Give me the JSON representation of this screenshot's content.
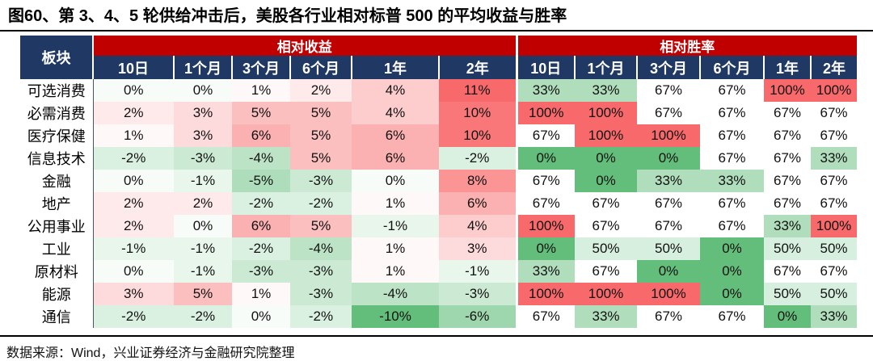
{
  "title": "图60、第 3、4、5 轮供给冲击后，美股各行业相对标普 500 的平均收益与胜率",
  "source": "数据来源：Wind，兴业证券经济与金融研究院整理",
  "colors": {
    "header_navy": "#1F3864",
    "header_red": "#C00000",
    "label_divider": "#44546A"
  },
  "table": {
    "sector_header": "板块",
    "groups": [
      {
        "label": "相对收益",
        "columns": [
          "10日",
          "1个月",
          "3个月",
          "6个月",
          "1年",
          "2年"
        ]
      },
      {
        "label": "相对胜率",
        "columns": [
          "10日",
          "1个月",
          "3个月",
          "6个月",
          "1年",
          "2年"
        ]
      }
    ]
  },
  "chart_data": {
    "type": "heatmap",
    "title": "图60、第 3、4、5 轮供给冲击后，美股各行业相对标普 500 的平均收益与胜率",
    "row_header": "板块",
    "column_groups": [
      "相对收益",
      "相对胜率"
    ],
    "columns": [
      "10日",
      "1个月",
      "3个月",
      "6个月",
      "1年",
      "2年"
    ],
    "unit": "%",
    "rows": [
      "可选消费",
      "必需消费",
      "医疗保健",
      "信息技术",
      "金融",
      "地产",
      "公用事业",
      "工业",
      "原材料",
      "能源",
      "通信"
    ],
    "returns": [
      [
        0,
        0,
        1,
        2,
        4,
        11
      ],
      [
        2,
        3,
        5,
        5,
        4,
        10
      ],
      [
        1,
        3,
        6,
        5,
        6,
        10
      ],
      [
        -2,
        -3,
        -4,
        5,
        6,
        -2
      ],
      [
        0,
        -1,
        -5,
        -3,
        0,
        8
      ],
      [
        2,
        2,
        -2,
        -2,
        1,
        6
      ],
      [
        2,
        0,
        6,
        5,
        -1,
        4
      ],
      [
        -1,
        -1,
        -2,
        -4,
        1,
        3
      ],
      [
        0,
        -1,
        -3,
        -3,
        1,
        -1
      ],
      [
        3,
        5,
        1,
        -3,
        -4,
        -3
      ],
      [
        -2,
        -2,
        0,
        -2,
        -10,
        -6
      ]
    ],
    "win_rates": [
      [
        33,
        33,
        67,
        67,
        100,
        100
      ],
      [
        100,
        100,
        67,
        67,
        67,
        67
      ],
      [
        67,
        100,
        100,
        67,
        67,
        67
      ],
      [
        0,
        0,
        0,
        67,
        67,
        33
      ],
      [
        67,
        0,
        33,
        33,
        67,
        67
      ],
      [
        67,
        67,
        67,
        67,
        67,
        67
      ],
      [
        100,
        67,
        67,
        67,
        33,
        100
      ],
      [
        0,
        50,
        50,
        0,
        50,
        50
      ],
      [
        33,
        67,
        0,
        0,
        67,
        67
      ],
      [
        100,
        100,
        100,
        0,
        50,
        50
      ],
      [
        67,
        33,
        67,
        67,
        0,
        33
      ]
    ],
    "color_scale": {
      "returns": {
        "min": -10,
        "mid": 0.5,
        "max": 11
      },
      "win_rates": {
        "min": 0,
        "mid": 67,
        "max": 100
      },
      "low_color": "#63BE7B",
      "mid_color": "#FFFFFF",
      "high_color": "#F8696B"
    }
  }
}
